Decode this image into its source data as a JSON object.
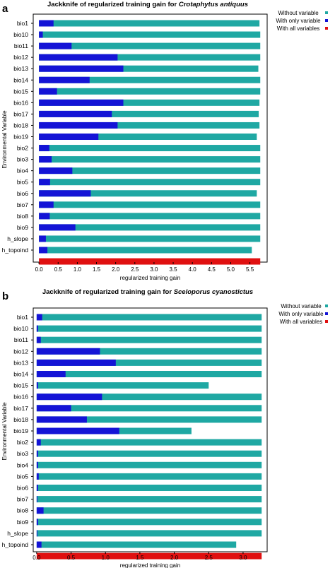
{
  "colors": {
    "without": "#1fa8a3",
    "only": "#1414d6",
    "all": "#e01010"
  },
  "chart_data": [
    {
      "type": "bar",
      "panel_label": "a",
      "title_prefix": "Jackknife of regularized training gain for ",
      "title_species": "Crotaphytus antiquus",
      "xlabel": "regularized training gain",
      "ylabel": "Environmental Variable",
      "xlim": [
        -0.15,
        5.95
      ],
      "xticks": [
        "0.0",
        "0.5",
        "1.0",
        "1.5",
        "2.0",
        "2.5",
        "3.0",
        "3.5",
        "4.0",
        "4.5",
        "5.0",
        "5.5"
      ],
      "legend": [
        "Without variable",
        "With only variable",
        "With all variables"
      ],
      "legend_position": "top-right",
      "categories": [
        "bio1",
        "bio10",
        "bio11",
        "bio12",
        "bio13",
        "bio14",
        "bio15",
        "bio16",
        "bio17",
        "bio18",
        "bio19",
        "bio2",
        "bio3",
        "bio4",
        "bio5",
        "bio6",
        "bio7",
        "bio8",
        "bio9",
        "h_slope",
        "h_topoind"
      ],
      "series": [
        {
          "name": "Without variable",
          "values": [
            5.75,
            5.77,
            5.77,
            5.77,
            5.72,
            5.77,
            5.77,
            5.75,
            5.73,
            5.75,
            5.68,
            5.77,
            5.77,
            5.77,
            5.77,
            5.68,
            5.77,
            5.77,
            5.77,
            5.77,
            5.55
          ]
        },
        {
          "name": "With only variable",
          "values": [
            0.38,
            0.1,
            0.85,
            2.05,
            2.2,
            1.32,
            0.47,
            2.2,
            1.9,
            2.05,
            1.55,
            0.27,
            0.33,
            0.87,
            0.29,
            1.35,
            0.38,
            0.28,
            0.95,
            0.18,
            0.22
          ]
        }
      ],
      "all_variables": 5.77
    },
    {
      "type": "bar",
      "panel_label": "b",
      "title_prefix": "Jackknife of regularized training gain for ",
      "title_species": "Sceloporus cyanostictus",
      "xlabel": "regularized training gain",
      "ylabel": "Environmental Variable",
      "xlim": [
        -0.05,
        3.35
      ],
      "xticks": [
        "0.0",
        "0.5",
        "1.0",
        "1.5",
        "2.0",
        "2.5",
        "3.0"
      ],
      "legend": [
        "Without variable",
        "With only variable",
        "With all variables"
      ],
      "legend_position": "top-right",
      "categories": [
        "bio1",
        "bio10",
        "bio11",
        "bio12",
        "bio13",
        "bio14",
        "bio15",
        "bio16",
        "bio17",
        "bio18",
        "bio19",
        "bio2",
        "bio3",
        "bio4",
        "bio5",
        "bio6",
        "bio7",
        "bio8",
        "bio9",
        "h_slope",
        "h_topoind"
      ],
      "series": [
        {
          "name": "Without variable",
          "values": [
            3.27,
            3.27,
            3.27,
            3.27,
            3.27,
            3.27,
            2.5,
            3.27,
            3.27,
            3.27,
            2.25,
            3.27,
            3.27,
            3.27,
            3.27,
            3.27,
            3.27,
            3.27,
            3.27,
            3.27,
            2.9
          ]
        },
        {
          "name": "With only variable",
          "values": [
            0.08,
            0.02,
            0.06,
            0.92,
            1.15,
            0.42,
            0.02,
            0.95,
            0.5,
            0.73,
            1.2,
            0.06,
            0.02,
            0.02,
            0.03,
            0.02,
            0.01,
            0.1,
            0.02,
            0.01,
            0.07
          ]
        }
      ],
      "all_variables": 3.27
    }
  ]
}
